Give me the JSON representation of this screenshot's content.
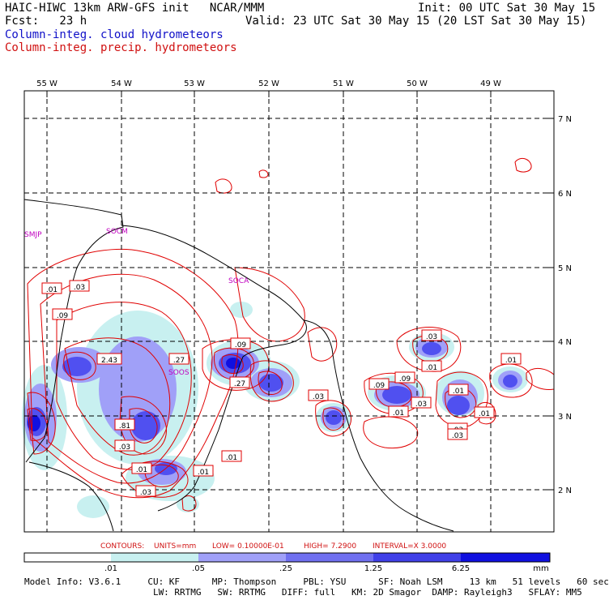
{
  "header": {
    "line1_left": "HAIC-HIWC 13km ARW-GFS init   NCAR/MMM",
    "line1_right": "Init: 00 UTC Sat 30 May 15",
    "line2_left": "Fcst:   23 h",
    "line2_right": "Valid: 23 UTC Sat 30 May 15 (20 LST Sat 30 May 15)",
    "legend_cloud": "Column-integ. cloud hydrometeors",
    "legend_precip": "Column-integ. precip. hydrometeors"
  },
  "colors": {
    "cloud_fill_light": "#c8f0f0",
    "cloud_fill_mid": "#a0a0f8",
    "cloud_fill_dark": "#5050f0",
    "cloud_fill_darkest": "#1010e0",
    "precip_contour": "#e00000",
    "station": "#c000c0"
  },
  "axes": {
    "lon_labels": [
      "55 W",
      "54 W",
      "53 W",
      "52 W",
      "51 W",
      "50 W",
      "49 W"
    ],
    "lat_labels": [
      "7 N",
      "6 N",
      "5 N",
      "4 N",
      "3 N",
      "2 N"
    ]
  },
  "stations": [
    "SMJP",
    "SOCM",
    "SOCA",
    "SOOS"
  ],
  "contour_labels": [
    ".01",
    ".03",
    ".09",
    "2.43",
    ".27",
    ".09",
    ".27",
    ".81",
    ".03",
    ".01",
    ".03",
    ".01",
    ".01",
    ".03",
    ".09",
    ".03",
    ".09",
    ".01",
    ".03",
    ".01",
    ".01",
    ".01",
    ".03",
    ".01",
    ".03"
  ],
  "contour_info": {
    "contours": "CONTOURS:",
    "units": "UNITS=mm",
    "low": "LOW= 0.10000E-01",
    "high": "HIGH=  7.2900",
    "interval": "INTERVAL=X  3.0000"
  },
  "colorbar": {
    "ticks": [
      ".01",
      ".05",
      ".25",
      "1.25",
      "6.25"
    ],
    "unit": "mm",
    "colors": [
      "#ffffff",
      "#c8f0f0",
      "#a0a0f8",
      "#7070f0",
      "#4040e8",
      "#1010e0"
    ]
  },
  "model_info": {
    "line1": "Model Info: V3.6.1     CU: KF      MP: Thompson     PBL: YSU      SF: Noah LSM     13 km   51 levels   60 sec",
    "line2": "                        LW: RRTMG   SW: RRTMG   DIFF: full   KM: 2D Smagor  DAMP: Rayleigh3   SFLAY: MM5"
  }
}
